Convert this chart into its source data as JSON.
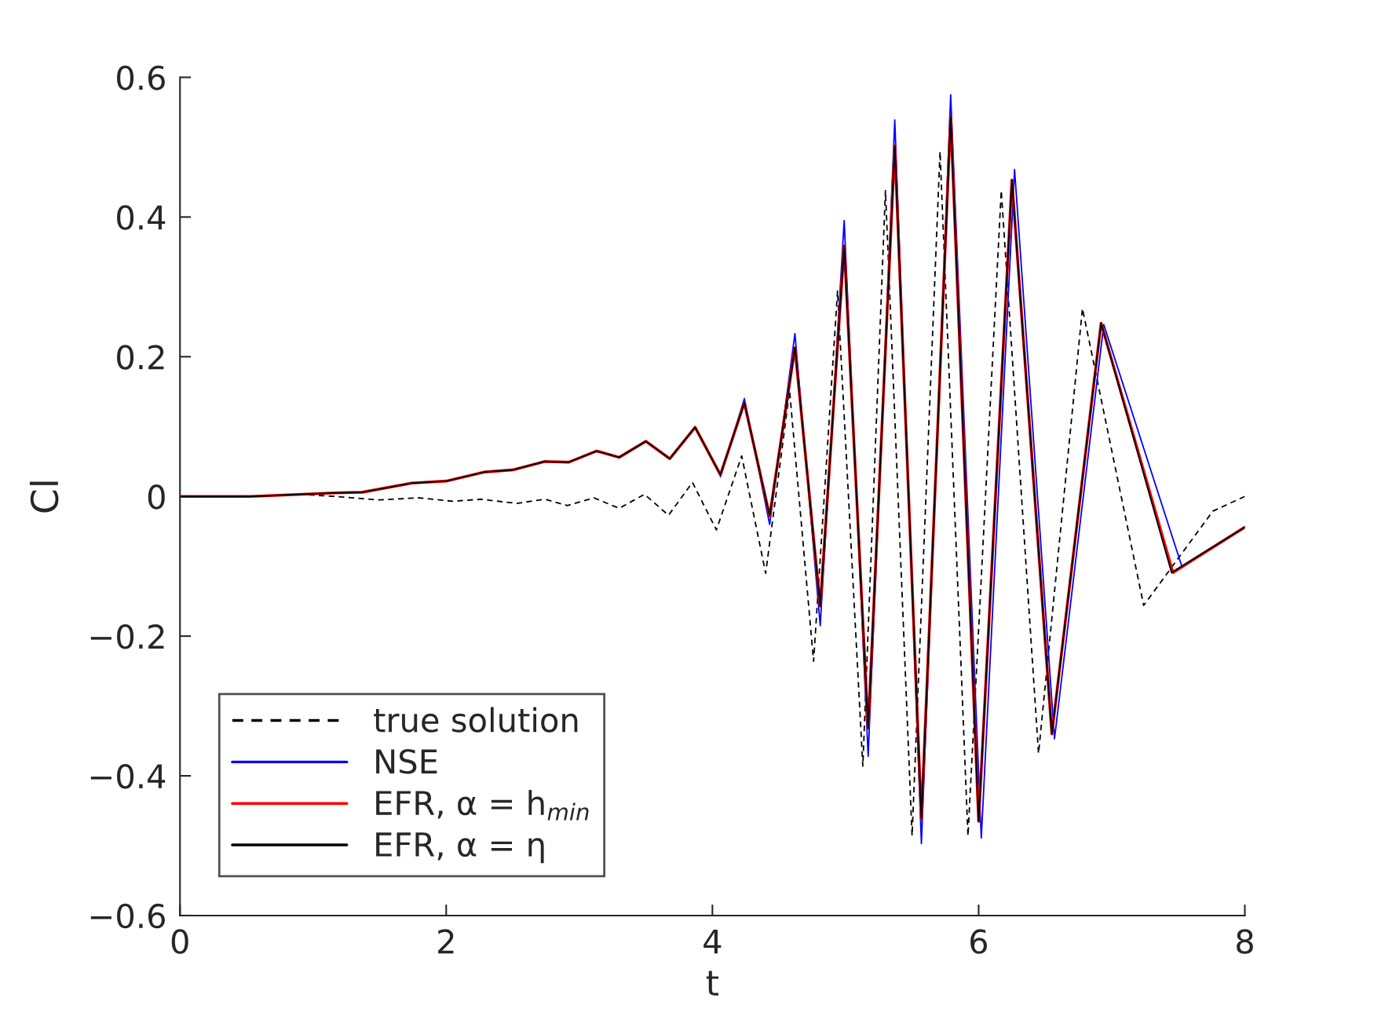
{
  "chart_data": {
    "type": "line",
    "xlabel": "t",
    "ylabel": "Cl",
    "xlim": [
      0,
      8
    ],
    "xticks": [
      0,
      2,
      4,
      6,
      8
    ],
    "ylim": [
      -0.6,
      0.6
    ],
    "yticks": [
      {
        "value": -0.6,
        "label": "−0.6"
      },
      {
        "value": -0.4,
        "label": "−0.4"
      },
      {
        "value": -0.2,
        "label": "−0.2"
      },
      0,
      0.2,
      0.4,
      0.6
    ],
    "grid": false,
    "legend": "bottom left",
    "series": [
      {
        "name": "true solution",
        "color": "#000000",
        "line_style": "dashed",
        "x": [
          0,
          0.5,
          0.9,
          1.16,
          1.5,
          1.79,
          2.05,
          2.26,
          2.53,
          2.74,
          2.91,
          3.11,
          3.3,
          3.49,
          3.67,
          3.85,
          4.03,
          4.22,
          4.4,
          4.58,
          4.76,
          4.94,
          5.13,
          5.3,
          5.5,
          5.71,
          5.92,
          6.17,
          6.45,
          6.78,
          7.24,
          7.76,
          8.0
        ],
        "values": [
          0,
          0,
          0.003,
          0.0,
          -0.005,
          -0.002,
          -0.007,
          -0.004,
          -0.01,
          -0.004,
          -0.013,
          -0.002,
          -0.017,
          0.003,
          -0.027,
          0.02,
          -0.048,
          0.058,
          -0.11,
          0.151,
          -0.236,
          0.294,
          -0.386,
          0.438,
          -0.486,
          0.494,
          -0.486,
          0.438,
          -0.368,
          0.269,
          -0.156,
          -0.021,
          0.0
        ]
      },
      {
        "name": "NSE",
        "color": "#0000ff",
        "line_style": "solid",
        "x": [
          4.06,
          4.24,
          4.43,
          4.62,
          4.81,
          4.99,
          5.17,
          5.37,
          5.57,
          5.79,
          6.02,
          6.27,
          6.57,
          6.94,
          7.53
        ],
        "values": [
          0.028,
          0.14,
          -0.04,
          0.233,
          -0.185,
          0.395,
          -0.372,
          0.539,
          -0.497,
          0.575,
          -0.489,
          0.468,
          -0.347,
          0.246,
          -0.102
        ]
      },
      {
        "name": "EFR, α = h$_{min}$",
        "color": "#ff0000",
        "line_style": "solid",
        "x": [
          0,
          0.53,
          1.16,
          1.37,
          1.74,
          2.0,
          2.29,
          2.5,
          2.74,
          2.92,
          3.13,
          3.3,
          3.5,
          3.68,
          3.87,
          4.06,
          4.24,
          4.43,
          4.62,
          4.81,
          4.99,
          5.17,
          5.37,
          5.57,
          5.79,
          6.0,
          6.25,
          6.55,
          6.92,
          7.46,
          8.0
        ],
        "values": [
          0,
          0,
          0.005,
          0.006,
          0.019,
          0.022,
          0.035,
          0.038,
          0.05,
          0.049,
          0.065,
          0.056,
          0.079,
          0.054,
          0.099,
          0.031,
          0.134,
          -0.028,
          0.213,
          -0.157,
          0.359,
          -0.332,
          0.502,
          -0.461,
          0.544,
          -0.465,
          0.453,
          -0.34,
          0.248,
          -0.109,
          -0.044
        ]
      },
      {
        "name": "EFR, α = η",
        "color": "#000000",
        "line_style": "solid",
        "x": [
          0,
          0.53,
          1.16,
          1.37,
          1.74,
          2.0,
          2.29,
          2.5,
          2.74,
          2.92,
          3.13,
          3.3,
          3.5,
          3.68,
          3.87,
          4.06,
          4.24,
          4.43,
          4.62,
          4.81,
          4.99,
          5.17,
          5.37,
          5.57,
          5.79,
          6.0,
          6.25,
          6.55,
          6.92,
          7.45,
          8.0
        ],
        "values": [
          0,
          0,
          0.005,
          0.006,
          0.019,
          0.022,
          0.035,
          0.038,
          0.05,
          0.049,
          0.065,
          0.056,
          0.079,
          0.054,
          0.099,
          0.031,
          0.134,
          -0.028,
          0.213,
          -0.157,
          0.359,
          -0.332,
          0.502,
          -0.461,
          0.544,
          -0.465,
          0.453,
          -0.34,
          0.248,
          -0.109,
          -0.044
        ]
      }
    ]
  }
}
